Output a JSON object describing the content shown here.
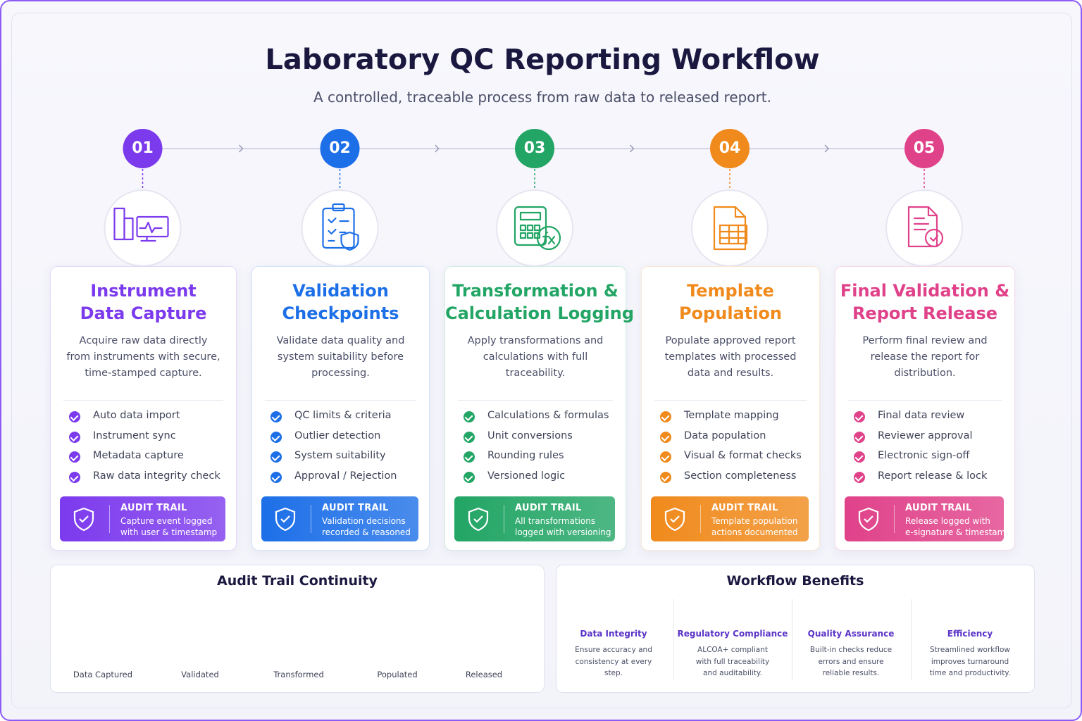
{
  "header": {
    "title": "Laboratory QC Reporting Workflow",
    "subtitle": "A controlled, traceable process from raw data to released report."
  },
  "steps": [
    {
      "number": "01",
      "color": "#7c3aed",
      "title_lines": [
        "Instrument",
        "Data Capture"
      ],
      "description": "Acquire raw data directly from instruments with secure, time-stamped capture.",
      "checks": [
        "Auto data import",
        "Instrument sync",
        "Metadata capture",
        "Raw data integrity check"
      ],
      "audit": {
        "label": "AUDIT TRAIL",
        "lines": [
          "Capture event logged",
          "with user & timestamp"
        ]
      }
    },
    {
      "number": "02",
      "color": "#1d6fe8",
      "title_lines": [
        "Validation",
        "Checkpoints"
      ],
      "description": "Validate data quality and system suitability before processing.",
      "checks": [
        "QC limits & criteria",
        "Outlier detection",
        "System suitability",
        "Approval / Rejection"
      ],
      "audit": {
        "label": "AUDIT TRAIL",
        "lines": [
          "Validation decisions",
          "recorded & reasoned"
        ]
      }
    },
    {
      "number": "03",
      "color": "#22a565",
      "title_lines": [
        "Transformation &",
        "Calculation Logging"
      ],
      "description": "Apply transformations and calculations with full traceability.",
      "checks": [
        "Calculations & formulas",
        "Unit conversions",
        "Rounding rules",
        "Versioned logic"
      ],
      "audit": {
        "label": "AUDIT TRAIL",
        "lines": [
          "All transformations",
          "logged with versioning"
        ]
      }
    },
    {
      "number": "04",
      "color": "#f08a1c",
      "title_lines": [
        "Template",
        "Population"
      ],
      "description": "Populate approved report templates with processed data and results.",
      "checks": [
        "Template mapping",
        "Data population",
        "Visual & format checks",
        "Section completeness"
      ],
      "audit": {
        "label": "AUDIT TRAIL",
        "lines": [
          "Template population",
          "actions documented"
        ]
      }
    },
    {
      "number": "05",
      "color": "#e0428a",
      "title_lines": [
        "Final Validation &",
        "Report Release"
      ],
      "description": "Perform final review and release the report for distribution.",
      "checks": [
        "Final data review",
        "Reviewer approval",
        "Electronic sign-off",
        "Report release & lock"
      ],
      "audit": {
        "label": "AUDIT TRAIL",
        "lines": [
          "Release logged with",
          "e-signature & timestamp"
        ]
      }
    }
  ],
  "continuity": {
    "title": "Audit Trail Continuity",
    "stages": [
      "Data Captured",
      "Validated",
      "Transformed",
      "Populated",
      "Released"
    ]
  },
  "benefits": {
    "title": "Workflow Benefits",
    "items": [
      {
        "title": "Data Integrity",
        "lines": [
          "Ensure accuracy and",
          "consistency at every",
          "step."
        ]
      },
      {
        "title": "Regulatory Compliance",
        "lines": [
          "ALCOA+ compliant",
          "with full traceability",
          "and auditability."
        ]
      },
      {
        "title": "Quality Assurance",
        "lines": [
          "Built-in checks reduce",
          "errors and ensure",
          "reliable results."
        ]
      },
      {
        "title": "Efficiency",
        "lines": [
          "Streamlined workflow",
          "improves turnaround",
          "time and productivity."
        ]
      }
    ]
  }
}
